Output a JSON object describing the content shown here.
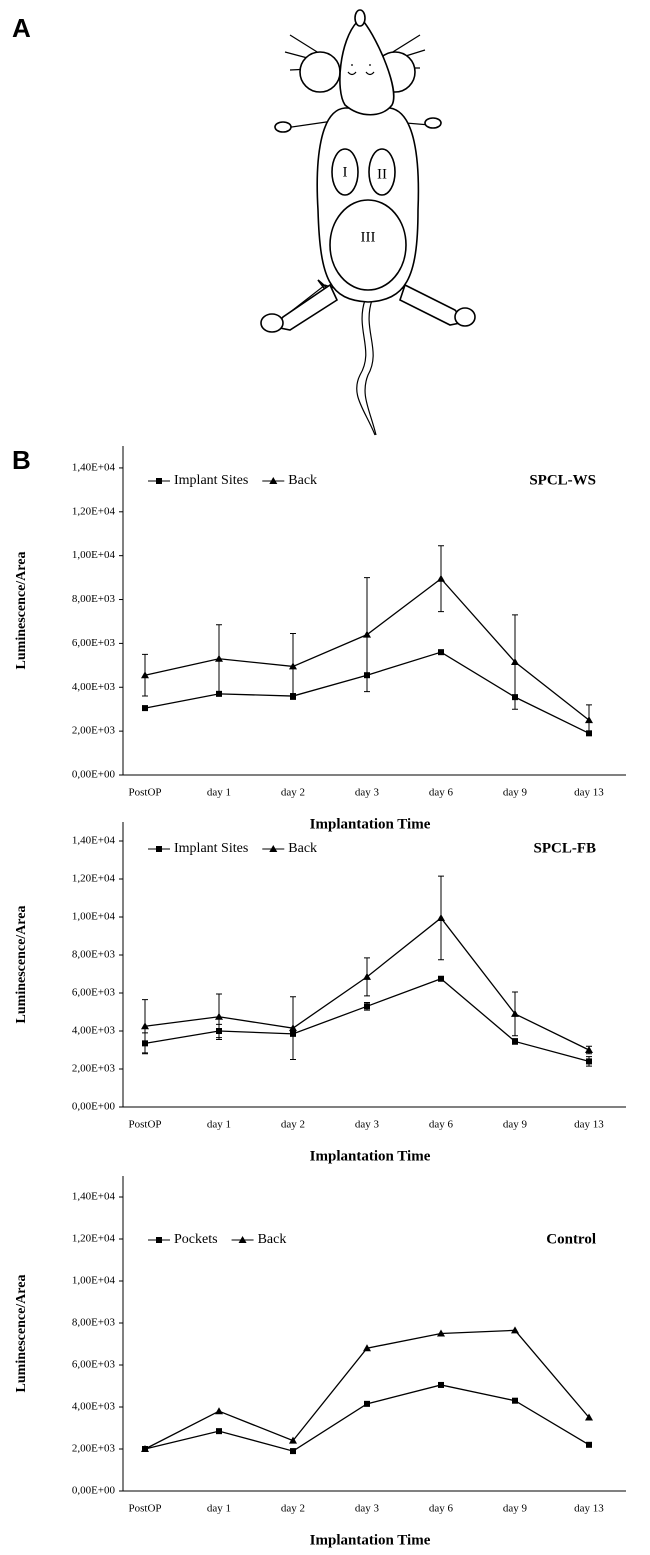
{
  "panels": {
    "a": "A",
    "b": "B"
  },
  "diagram": {
    "labels": [
      "I",
      "II",
      "III"
    ]
  },
  "chart_data": [
    {
      "type": "line",
      "title": "SPCL-WS",
      "x_label": "Implantation Time",
      "y_label": "Luminescence/Area",
      "categories": [
        "PostOP",
        "day 1",
        "day 2",
        "day 3",
        "day 6",
        "day 9",
        "day 13"
      ],
      "series": [
        {
          "name": "Implant Sites",
          "color": "#000000",
          "marker": "square",
          "values": [
            3050,
            3700,
            3600,
            4550,
            5600,
            3550,
            1900
          ]
        },
        {
          "name": "Back",
          "color": "#000000",
          "marker": "triangle",
          "values": [
            4550,
            5300,
            4950,
            6400,
            8950,
            5150,
            2500
          ],
          "errors": [
            950,
            1550,
            1500,
            2600,
            1500,
            2150,
            700
          ]
        }
      ],
      "ylim": [
        0,
        15000
      ],
      "yticks": [
        {
          "value": 0,
          "label": "0,00E+00"
        },
        {
          "value": 2000,
          "label": "2,00E+03"
        },
        {
          "value": 4000,
          "label": "4,00E+03"
        },
        {
          "value": 6000,
          "label": "6,00E+03"
        },
        {
          "value": 8000,
          "label": "8,00E+03"
        },
        {
          "value": 10000,
          "label": "1,00E+04"
        },
        {
          "value": 12000,
          "label": "1,20E+04"
        },
        {
          "value": 14000,
          "label": "1,40E+04"
        }
      ]
    },
    {
      "type": "line",
      "title": "SPCL-FB",
      "x_label": "Implantation Time",
      "y_label": "Luminescence/Area",
      "categories": [
        "PostOP",
        "day 1",
        "day 2",
        "day 3",
        "day 6",
        "day 9",
        "day 13"
      ],
      "series": [
        {
          "name": "Implant Sites",
          "color": "#000000",
          "marker": "square",
          "values": [
            3350,
            4000,
            3850,
            5300,
            6750,
            3450,
            2400
          ],
          "errors": [
            550,
            350,
            100,
            200,
            100,
            150,
            250
          ]
        },
        {
          "name": "Back",
          "color": "#000000",
          "marker": "triangle",
          "values": [
            4250,
            4750,
            4150,
            6850,
            9950,
            4900,
            3000
          ],
          "errors": [
            1400,
            1200,
            1650,
            1000,
            2200,
            1150,
            200
          ]
        }
      ],
      "ylim": [
        0,
        15000
      ],
      "yticks": [
        {
          "value": 0,
          "label": "0,00E+00"
        },
        {
          "value": 2000,
          "label": "2,00E+03"
        },
        {
          "value": 4000,
          "label": "4,00E+03"
        },
        {
          "value": 6000,
          "label": "6,00E+03"
        },
        {
          "value": 8000,
          "label": "8,00E+03"
        },
        {
          "value": 10000,
          "label": "1,00E+04"
        },
        {
          "value": 12000,
          "label": "1,20E+04"
        },
        {
          "value": 14000,
          "label": "1,40E+04"
        }
      ]
    },
    {
      "type": "line",
      "title": "Control",
      "x_label": "Implantation Time",
      "y_label": "Luminescence/Area",
      "categories": [
        "PostOP",
        "day 1",
        "day 2",
        "day 3",
        "day 6",
        "day 9",
        "day 13"
      ],
      "series": [
        {
          "name": "Pockets",
          "color": "#000000",
          "marker": "square",
          "values": [
            2000,
            2850,
            1900,
            4150,
            5050,
            4300,
            2200
          ]
        },
        {
          "name": "Back",
          "color": "#000000",
          "marker": "triangle",
          "values": [
            2000,
            3800,
            2400,
            6800,
            7500,
            7650,
            3500
          ]
        }
      ],
      "ylim": [
        0,
        15000
      ],
      "yticks": [
        {
          "value": 0,
          "label": "0,00E+00"
        },
        {
          "value": 2000,
          "label": "2,00E+03"
        },
        {
          "value": 4000,
          "label": "4,00E+03"
        },
        {
          "value": 6000,
          "label": "6,00E+03"
        },
        {
          "value": 8000,
          "label": "8,00E+03"
        },
        {
          "value": 10000,
          "label": "1,00E+04"
        },
        {
          "value": 12000,
          "label": "1,20E+04"
        },
        {
          "value": 14000,
          "label": "1,40E+04"
        }
      ]
    }
  ]
}
